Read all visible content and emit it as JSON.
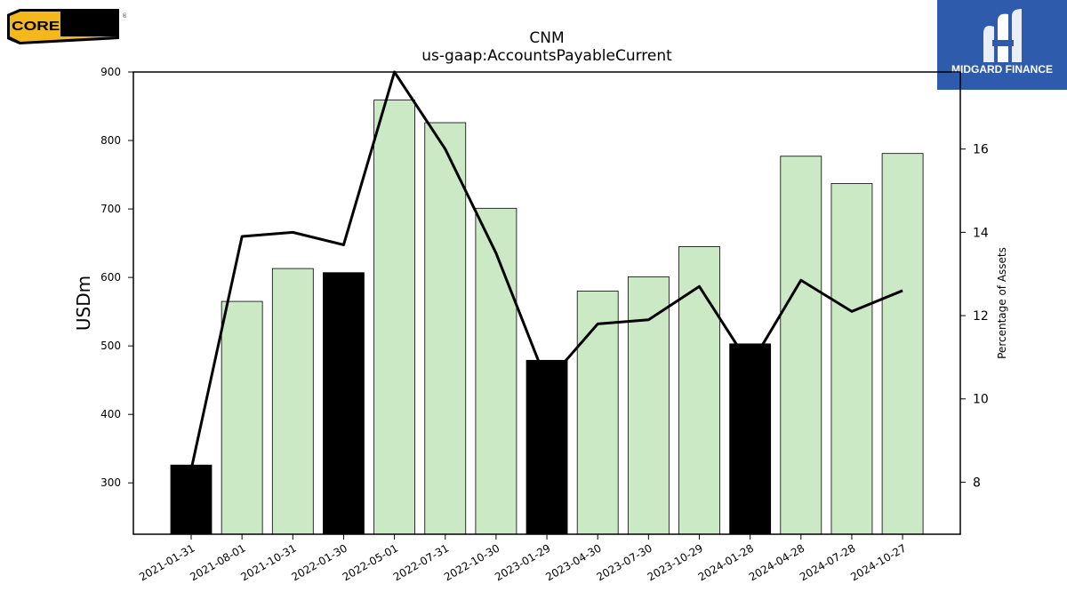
{
  "logos": {
    "left_text": "CORE&MAIN",
    "left_reg": "®",
    "right_text": "MIDGARD FINANCE"
  },
  "chart_data": {
    "type": "bar",
    "title": "CNM",
    "subtitle": "us-gaap:AccountsPayableCurrent",
    "ylabel": "USDm",
    "y2label": "Percentage of Assets",
    "ylim": [
      225,
      900
    ],
    "y2lim": [
      6.75,
      17.85
    ],
    "yticks": [
      300,
      400,
      500,
      600,
      700,
      800,
      900
    ],
    "y2ticks": [
      8,
      10,
      12,
      14,
      16
    ],
    "categories": [
      "2021-01-31",
      "2021-08-01",
      "2021-10-31",
      "2022-01-30",
      "2022-05-01",
      "2022-07-31",
      "2022-10-30",
      "2023-01-29",
      "2023-04-30",
      "2023-07-30",
      "2023-10-29",
      "2024-01-28",
      "2024-04-28",
      "2024-07-28",
      "2024-10-27"
    ],
    "series": [
      {
        "type": "bar",
        "values": [
          326,
          565,
          613,
          607,
          859,
          826,
          701,
          479,
          580,
          601,
          645,
          503,
          777,
          737,
          781
        ],
        "highlight": [
          true,
          false,
          false,
          true,
          false,
          false,
          false,
          true,
          false,
          false,
          false,
          true,
          false,
          false,
          false
        ]
      },
      {
        "type": "line",
        "axis": "right",
        "values": [
          8.3,
          13.9,
          14.0,
          13.7,
          17.85,
          16.0,
          13.5,
          10.4,
          11.8,
          11.9,
          12.7,
          10.8,
          12.85,
          12.1,
          12.6
        ]
      }
    ],
    "colors": {
      "bar": "#cce9c6",
      "bar_highlight": "#000000",
      "bar_edge": "#000000",
      "line": "#000000"
    },
    "grid": false
  }
}
